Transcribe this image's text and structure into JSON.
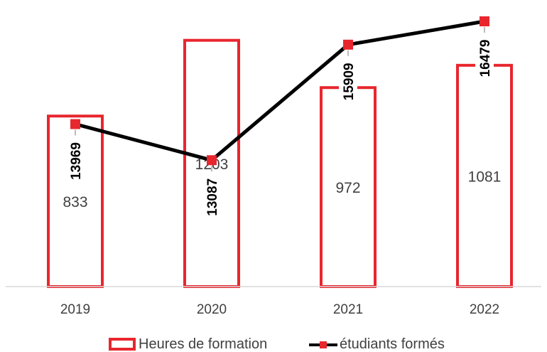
{
  "chart_data": {
    "type": "bar",
    "categories": [
      "2019",
      "2020",
      "2021",
      "2022"
    ],
    "series": [
      {
        "name": "Heures de formation",
        "type": "bar",
        "axis": "primary",
        "values": [
          833,
          1203,
          972,
          1081
        ],
        "color": "#E8262E"
      },
      {
        "name": "étudiants formés",
        "type": "line",
        "axis": "secondary",
        "values": [
          13969,
          13087,
          15909,
          16479
        ],
        "color": "#000000",
        "marker_color": "#E8262E"
      }
    ],
    "title": "",
    "xlabel": "",
    "ylabel": "",
    "ylim": [
      0,
      1400
    ],
    "y2lim": [
      10000,
      17000
    ],
    "grid": false,
    "legend": "bottom"
  }
}
